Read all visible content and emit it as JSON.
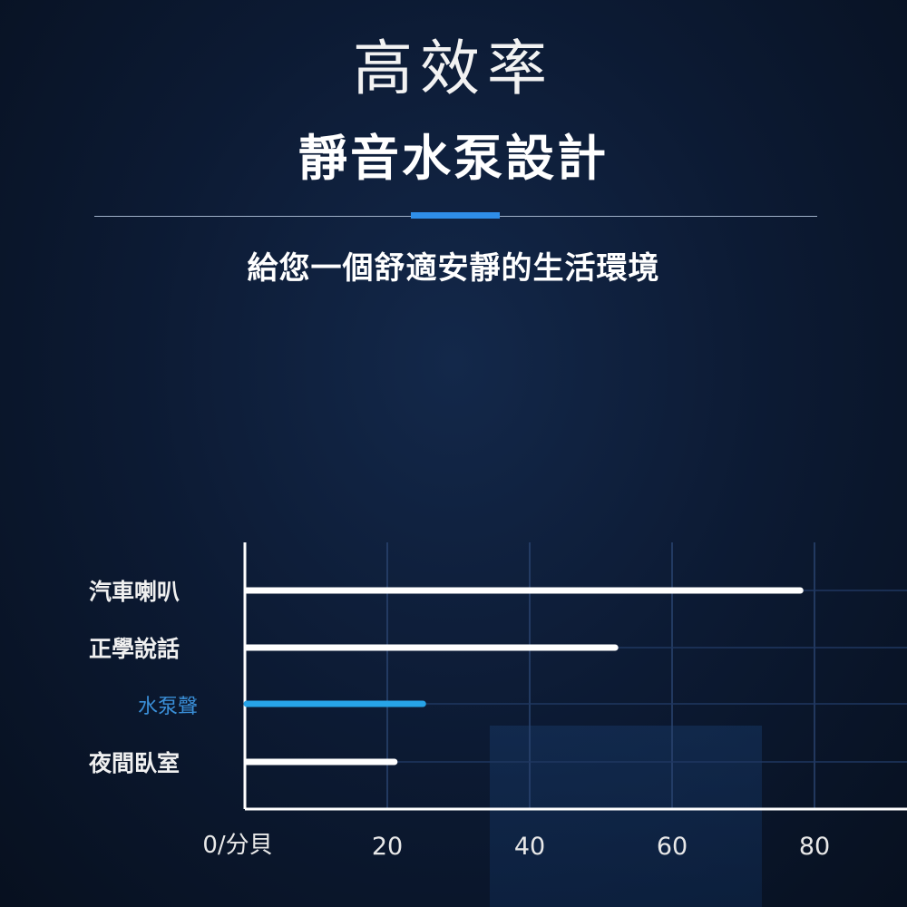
{
  "header": {
    "title": "高效率",
    "headline": "靜音水泵設計",
    "subtitle": "給您一個舒適安靜的生活環境"
  },
  "colors": {
    "accent": "#2f8ee8",
    "bar": "#ffffff",
    "highlight_bar": "#27a4e8",
    "highlight_label": "#3a8fd8"
  },
  "chart_data": {
    "type": "bar",
    "orientation": "horizontal",
    "categories": [
      "汽車喇叭",
      "正學說話",
      "水泵聲",
      "夜間臥室"
    ],
    "values": [
      78,
      52,
      25,
      21
    ],
    "highlight": "水泵聲",
    "xlabel": "0/分貝",
    "xticks": [
      "20",
      "40",
      "60",
      "80"
    ],
    "xtick_values": [
      20,
      40,
      60,
      80
    ],
    "xlim": [
      0,
      93
    ],
    "grid": true
  }
}
